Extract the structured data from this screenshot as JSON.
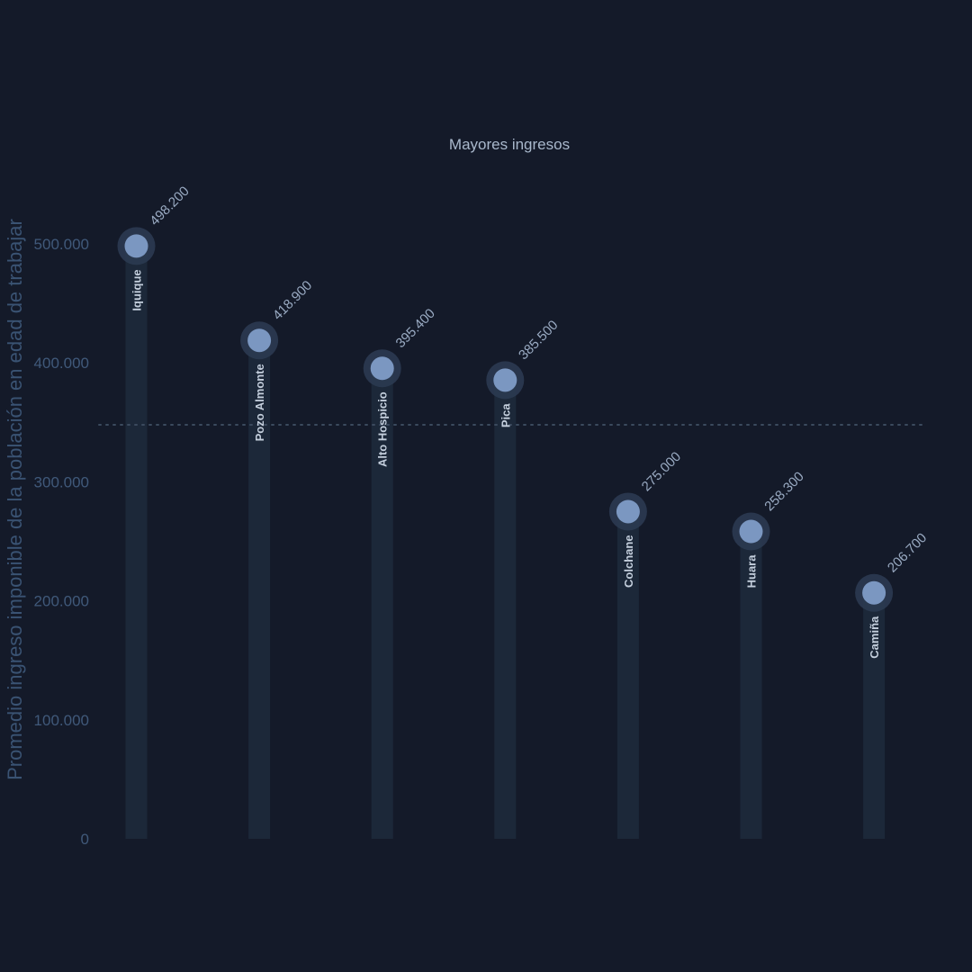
{
  "chart_data": {
    "type": "bar",
    "title": "Mayores ingresos",
    "ylabel": "Promedio ingreso imponible de la población en edad de trabajar",
    "xlabel": "",
    "categories": [
      "Iquique",
      "Pozo Almonte",
      "Alto Hospicio",
      "Pica",
      "Colchane",
      "Huara",
      "Camiña"
    ],
    "values": [
      498200,
      418900,
      395400,
      385500,
      275000,
      258300,
      206700
    ],
    "value_labels": [
      "498.200",
      "418.900",
      "395.400",
      "385.500",
      "275.000",
      "258.300",
      "206.700"
    ],
    "ylim": [
      0,
      500000
    ],
    "y_ticks": [
      0,
      100000,
      200000,
      300000,
      400000,
      500000
    ],
    "y_tick_labels": [
      "0",
      "100.000",
      "200.000",
      "300.000",
      "400.000",
      "500.000"
    ],
    "reference_line": 348000,
    "grid": false,
    "legend": "none",
    "colors": {
      "background": "#141a29",
      "bar": "#1c2839",
      "marker": "#7b97c1",
      "marker_halo": "#2b3a51",
      "reference_line": "#3b4a5e"
    }
  }
}
